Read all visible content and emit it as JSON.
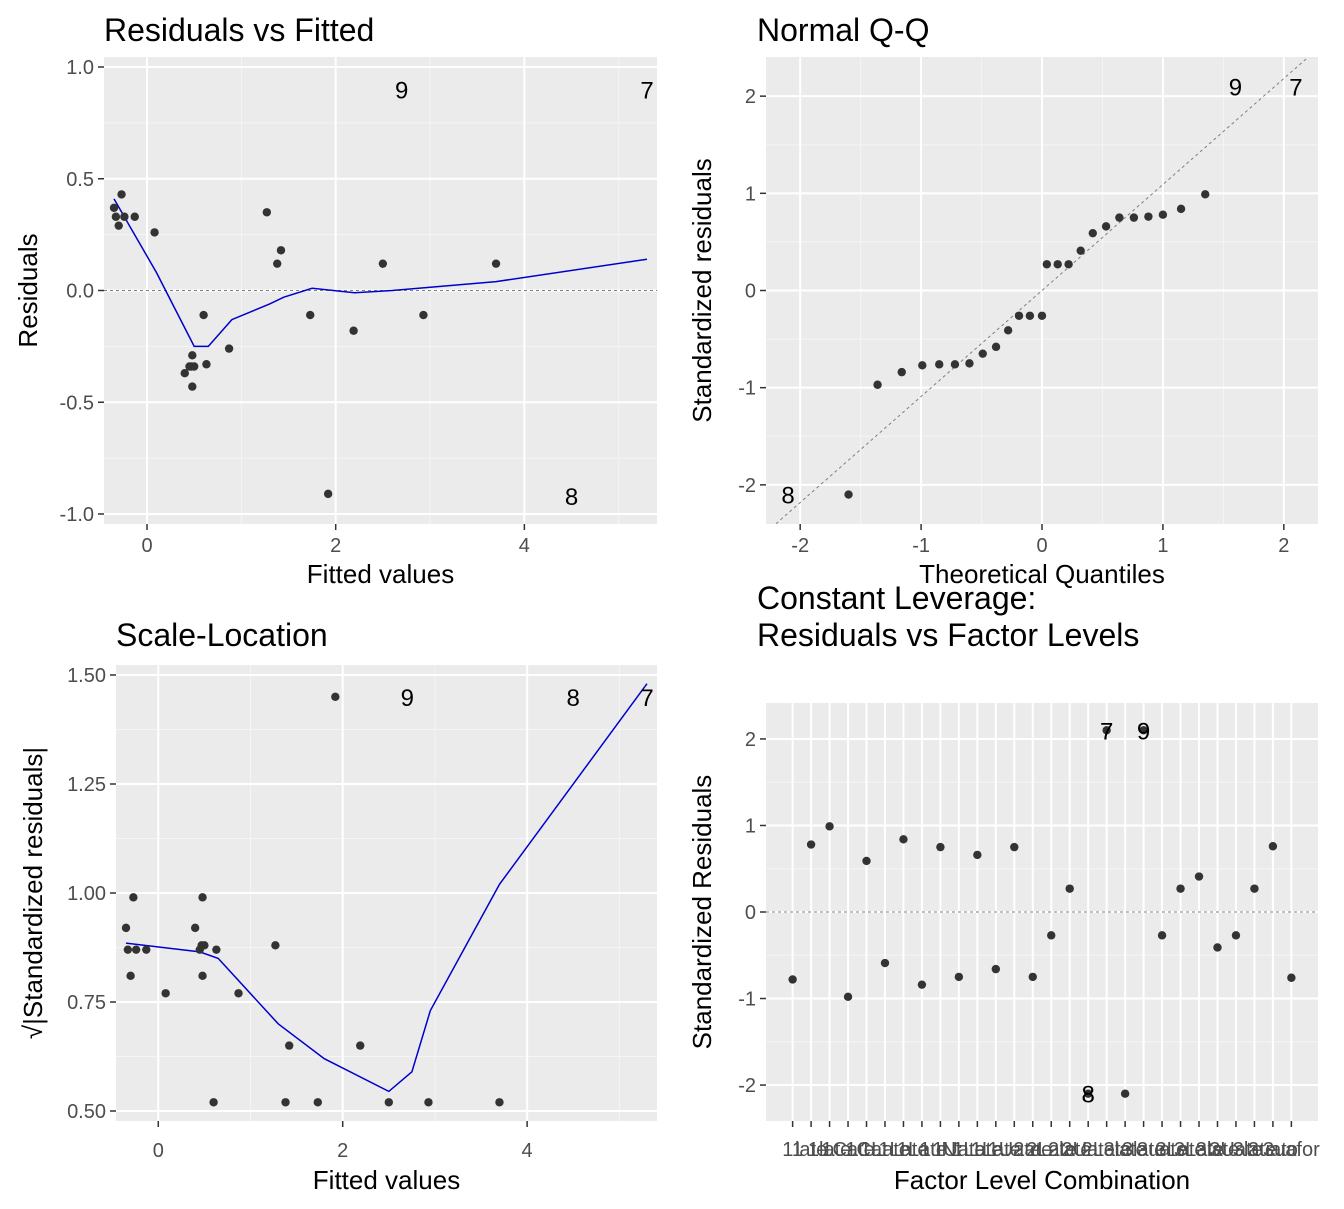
{
  "chart_data": [
    {
      "id": "p1",
      "type": "scatter",
      "title": [
        "Residuals vs Fitted"
      ],
      "xlabel": "Fitted values",
      "ylabel": "Residuals",
      "xlim": [
        -0.35,
        5.3
      ],
      "ylim": [
        -1.0,
        1.0
      ],
      "x_ticks": [
        0,
        2,
        4
      ],
      "y_ticks": [
        -1.0,
        -0.5,
        0.0,
        0.5,
        1.0
      ],
      "x_tick_labels": [
        "0",
        "2",
        "4"
      ],
      "y_tick_labels": [
        "-1.0",
        "-0.5",
        "0.0",
        "0.5",
        "1.0"
      ],
      "reference_line_y": 0,
      "points": [
        [
          -0.35,
          0.37
        ],
        [
          -0.33,
          0.33
        ],
        [
          -0.3,
          0.29
        ],
        [
          -0.27,
          0.43
        ],
        [
          -0.24,
          0.33
        ],
        [
          -0.13,
          0.33
        ],
        [
          0.08,
          0.26
        ],
        [
          0.4,
          -0.37
        ],
        [
          0.45,
          -0.34
        ],
        [
          0.47,
          -0.34
        ],
        [
          0.48,
          -0.29
        ],
        [
          0.48,
          -0.43
        ],
        [
          0.5,
          -0.34
        ],
        [
          0.6,
          -0.11
        ],
        [
          0.63,
          -0.33
        ],
        [
          0.87,
          -0.26
        ],
        [
          1.27,
          0.35
        ],
        [
          1.38,
          0.12
        ],
        [
          1.42,
          0.18
        ],
        [
          1.73,
          -0.11
        ],
        [
          1.92,
          -0.91
        ],
        [
          2.19,
          -0.18
        ],
        [
          2.5,
          0.12
        ],
        [
          2.93,
          -0.11
        ],
        [
          3.7,
          0.12
        ]
      ],
      "smooth": [
        [
          -0.35,
          0.41
        ],
        [
          0.1,
          0.08
        ],
        [
          0.5,
          -0.25
        ],
        [
          0.65,
          -0.25
        ],
        [
          0.9,
          -0.13
        ],
        [
          1.3,
          -0.06
        ],
        [
          1.45,
          -0.03
        ],
        [
          1.75,
          0.01
        ],
        [
          2.2,
          -0.01
        ],
        [
          2.6,
          -0.0
        ],
        [
          3.7,
          0.04
        ],
        [
          5.3,
          0.14
        ]
      ],
      "outlier_labels": [
        {
          "x": 2.7,
          "y": 0.9,
          "label": "9"
        },
        {
          "x": 5.3,
          "y": 0.9,
          "label": "7"
        },
        {
          "x": 4.5,
          "y": -0.92,
          "label": "8"
        }
      ]
    },
    {
      "id": "p2",
      "type": "scatter",
      "title": [
        "Normal Q-Q"
      ],
      "xlabel": "Theoretical Quantiles",
      "ylabel": "Standardized residuals",
      "xlim": [
        -2.2,
        2.2
      ],
      "ylim": [
        -2.3,
        2.3
      ],
      "x_ticks": [
        -2,
        -1,
        0,
        1,
        2
      ],
      "y_ticks": [
        -2,
        -1,
        0,
        1,
        2
      ],
      "x_tick_labels": [
        "-2",
        "-1",
        "0",
        "1",
        "2"
      ],
      "y_tick_labels": [
        "-2",
        "-1",
        "0",
        "1",
        "2"
      ],
      "reference_line": [
        [
          -2.2,
          -2.4
        ],
        [
          2.2,
          2.4
        ]
      ],
      "points": [
        [
          -1.6,
          -2.1
        ],
        [
          -1.36,
          -0.97
        ],
        [
          -1.16,
          -0.84
        ],
        [
          -0.99,
          -0.77
        ],
        [
          -0.85,
          -0.76
        ],
        [
          -0.72,
          -0.76
        ],
        [
          -0.6,
          -0.75
        ],
        [
          -0.49,
          -0.65
        ],
        [
          -0.38,
          -0.58
        ],
        [
          -0.28,
          -0.41
        ],
        [
          -0.19,
          -0.26
        ],
        [
          -0.1,
          -0.26
        ],
        [
          0.0,
          -0.26
        ],
        [
          0.04,
          0.27
        ],
        [
          0.13,
          0.27
        ],
        [
          0.22,
          0.27
        ],
        [
          0.32,
          0.41
        ],
        [
          0.42,
          0.59
        ],
        [
          0.53,
          0.66
        ],
        [
          0.64,
          0.75
        ],
        [
          0.76,
          0.75
        ],
        [
          0.88,
          0.76
        ],
        [
          1.0,
          0.78
        ],
        [
          1.15,
          0.84
        ],
        [
          1.35,
          0.99
        ]
      ],
      "outlier_labels": [
        {
          "x": -2.1,
          "y": -2.1,
          "label": "8"
        },
        {
          "x": 1.6,
          "y": 2.1,
          "label": "9"
        },
        {
          "x": 2.1,
          "y": 2.1,
          "label": "7"
        }
      ]
    },
    {
      "id": "p3",
      "type": "scatter",
      "title": [
        "Scale-Location"
      ],
      "xlabel": "Fitted values",
      "ylabel": "√|Standardized residuals|",
      "xlim": [
        -0.35,
        5.3
      ],
      "ylim": [
        0.5,
        1.5
      ],
      "x_ticks": [
        0,
        2,
        4
      ],
      "y_ticks": [
        0.5,
        0.75,
        1.0,
        1.25,
        1.5
      ],
      "x_tick_labels": [
        "0",
        "2",
        "4"
      ],
      "y_tick_labels": [
        "0.50",
        "0.75",
        "1.00",
        "1.25",
        "1.50"
      ],
      "points": [
        [
          -0.35,
          0.92
        ],
        [
          -0.33,
          0.87
        ],
        [
          -0.3,
          0.81
        ],
        [
          -0.27,
          0.99
        ],
        [
          -0.24,
          0.87
        ],
        [
          -0.13,
          0.87
        ],
        [
          0.08,
          0.77
        ],
        [
          0.4,
          0.92
        ],
        [
          0.45,
          0.87
        ],
        [
          0.47,
          0.88
        ],
        [
          0.48,
          0.81
        ],
        [
          0.48,
          0.99
        ],
        [
          0.5,
          0.88
        ],
        [
          0.6,
          0.52
        ],
        [
          0.63,
          0.87
        ],
        [
          0.87,
          0.77
        ],
        [
          1.27,
          0.88
        ],
        [
          1.38,
          0.52
        ],
        [
          1.42,
          0.65
        ],
        [
          1.73,
          0.52
        ],
        [
          1.92,
          1.45
        ],
        [
          2.19,
          0.65
        ],
        [
          2.5,
          0.52
        ],
        [
          2.93,
          0.52
        ],
        [
          3.7,
          0.52
        ]
      ],
      "smooth": [
        [
          -0.35,
          0.885
        ],
        [
          0.45,
          0.865
        ],
        [
          0.65,
          0.85
        ],
        [
          1.3,
          0.7
        ],
        [
          1.8,
          0.62
        ],
        [
          2.5,
          0.545
        ],
        [
          2.75,
          0.59
        ],
        [
          2.95,
          0.73
        ],
        [
          3.7,
          1.02
        ],
        [
          5.3,
          1.48
        ]
      ],
      "outlier_labels": [
        {
          "x": 2.7,
          "y": 1.45,
          "label": "9"
        },
        {
          "x": 4.5,
          "y": 1.45,
          "label": "8"
        },
        {
          "x": 5.3,
          "y": 1.45,
          "label": "7"
        }
      ]
    },
    {
      "id": "p4",
      "type": "scatter",
      "title": [
        "Constant Leverage:",
        "Residuals vs Factor Levels"
      ],
      "xlabel": "Factor Level Combination",
      "ylabel": "Standardized Residuals",
      "xlim": [
        0.1,
        28.9
      ],
      "ylim": [
        -2.3,
        2.3
      ],
      "x_ticks": [
        1,
        2,
        3,
        4,
        5,
        6,
        7,
        8,
        9,
        10,
        11,
        12,
        13,
        14,
        15,
        16,
        17,
        18,
        19,
        20,
        21,
        22,
        23,
        24,
        25,
        26,
        27,
        28
      ],
      "y_ticks": [
        -2,
        -1,
        0,
        1,
        2
      ],
      "x_tick_labels": [
        "11",
        "late",
        "1late",
        "1Cate",
        "1Cat",
        "1Late",
        "1Late",
        "1Late",
        "1uNt",
        "1Uate",
        "1Late",
        "1Late",
        "1Uate",
        "2ate",
        "2Late",
        "2late",
        "2Uate",
        "2Late",
        "3late",
        "3late",
        "3uate",
        "3Late",
        "3Late",
        "3late",
        "3Uate",
        "3late",
        "3uato",
        "3uafor"
      ],
      "y_tick_labels": [
        "-2",
        "-1",
        "0",
        "1",
        "2"
      ],
      "reference_line_y": 0,
      "points": [
        [
          1,
          -0.78
        ],
        [
          2,
          0.78
        ],
        [
          3,
          0.99
        ],
        [
          4,
          -0.98
        ],
        [
          5,
          0.59
        ],
        [
          6,
          -0.59
        ],
        [
          7,
          0.84
        ],
        [
          8,
          -0.84
        ],
        [
          9,
          0.75
        ],
        [
          10,
          -0.75
        ],
        [
          11,
          0.66
        ],
        [
          12,
          -0.66
        ],
        [
          13,
          0.75
        ],
        [
          14,
          -0.75
        ],
        [
          15,
          -0.27
        ],
        [
          16,
          0.27
        ],
        [
          17,
          -2.1
        ],
        [
          18,
          2.1
        ],
        [
          19,
          -2.1
        ],
        [
          20,
          2.1
        ],
        [
          21,
          -0.27
        ],
        [
          22,
          0.27
        ],
        [
          23,
          0.41
        ],
        [
          24,
          -0.41
        ],
        [
          25,
          -0.27
        ],
        [
          26,
          0.27
        ],
        [
          27,
          0.76
        ],
        [
          28,
          -0.76
        ]
      ],
      "outlier_labels": [
        {
          "x": 17,
          "y": -2.1,
          "label": "8"
        },
        {
          "x": 18,
          "y": 2.1,
          "label": "7"
        },
        {
          "x": 20,
          "y": 2.1,
          "label": "9"
        }
      ]
    }
  ],
  "colors": {
    "panel_bg": "#ebebeb",
    "grid_major": "#ffffff",
    "grid_minor": "#f5f5f5",
    "point": "#333333",
    "smooth": "#0000cc",
    "ref_line": "#7f7f7f",
    "tick_text": "#4d4d4d",
    "tick_mark": "#333333"
  }
}
